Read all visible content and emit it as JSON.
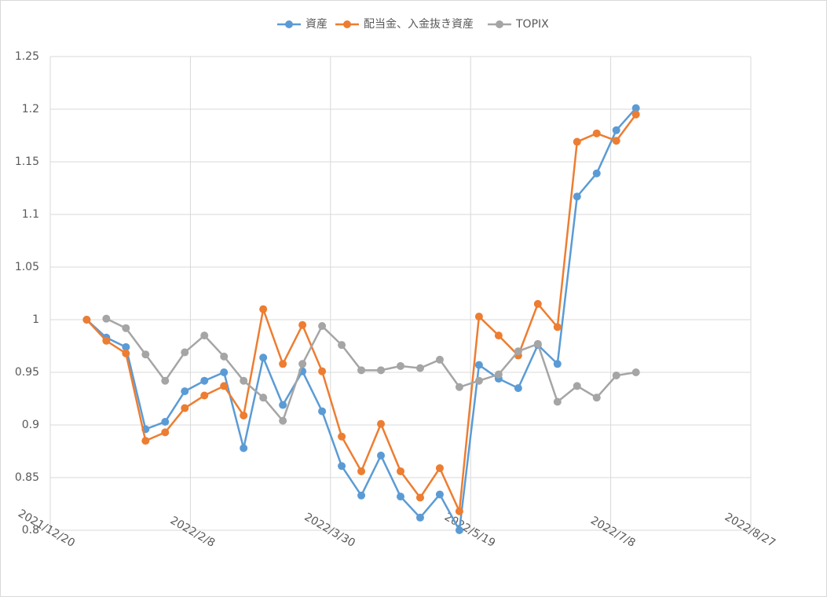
{
  "chart_data": {
    "type": "line",
    "x": [
      "2022-01-02",
      "2022-01-09",
      "2022-01-16",
      "2022-01-23",
      "2022-01-30",
      "2022-02-06",
      "2022-02-13",
      "2022-02-20",
      "2022-02-27",
      "2022-03-06",
      "2022-03-13",
      "2022-03-20",
      "2022-03-27",
      "2022-04-03",
      "2022-04-10",
      "2022-04-17",
      "2022-04-24",
      "2022-05-01",
      "2022-05-08",
      "2022-05-15",
      "2022-05-22",
      "2022-05-29",
      "2022-06-05",
      "2022-06-12",
      "2022-06-19",
      "2022-06-26",
      "2022-07-03",
      "2022-07-10",
      "2022-07-17"
    ],
    "series": [
      {
        "name": "資産",
        "color": "#5b9bd5",
        "values": [
          1.0,
          0.983,
          0.974,
          0.896,
          0.903,
          0.932,
          0.942,
          0.95,
          0.878,
          0.964,
          0.919,
          0.951,
          0.913,
          0.861,
          0.833,
          0.871,
          0.832,
          0.812,
          0.834,
          0.8,
          0.957,
          0.944,
          0.935,
          0.976,
          0.958,
          1.117,
          1.139,
          1.18,
          1.201
        ]
      },
      {
        "name": "配当金、入金抜き資産",
        "color": "#ed7d31",
        "values": [
          1.0,
          0.98,
          0.968,
          0.885,
          0.893,
          0.916,
          0.928,
          0.937,
          0.909,
          1.01,
          0.958,
          0.995,
          0.951,
          0.889,
          0.856,
          0.901,
          0.856,
          0.831,
          0.859,
          0.818,
          1.003,
          0.985,
          0.966,
          1.015,
          0.993,
          1.169,
          1.177,
          1.17,
          1.195
        ]
      },
      {
        "name": "TOPIX",
        "color": "#a5a5a5",
        "values": [
          null,
          1.001,
          0.992,
          0.967,
          0.942,
          0.969,
          0.985,
          0.965,
          0.942,
          0.926,
          0.904,
          0.958,
          0.994,
          0.976,
          0.952,
          0.952,
          0.956,
          0.954,
          0.962,
          0.936,
          0.942,
          0.948,
          0.97,
          0.977,
          0.922,
          0.937,
          0.926,
          0.947,
          0.95
        ]
      }
    ],
    "xlim": [
      "2021-12-20",
      "2022-08-27"
    ],
    "xticks": [
      {
        "value": "2021-12-20",
        "label": "2021/12/20"
      },
      {
        "value": "2022-02-08",
        "label": "2022/2/8"
      },
      {
        "value": "2022-03-30",
        "label": "2022/3/30"
      },
      {
        "value": "2022-05-19",
        "label": "2022/5/19"
      },
      {
        "value": "2022-07-08",
        "label": "2022/7/8"
      },
      {
        "value": "2022-08-27",
        "label": "2022/8/27"
      }
    ],
    "ylim": [
      0.8,
      1.25
    ],
    "yticks": [
      0.8,
      0.85,
      0.9,
      0.95,
      1,
      1.05,
      1.1,
      1.15,
      1.2,
      1.25
    ],
    "grid": true,
    "legend": "top"
  }
}
